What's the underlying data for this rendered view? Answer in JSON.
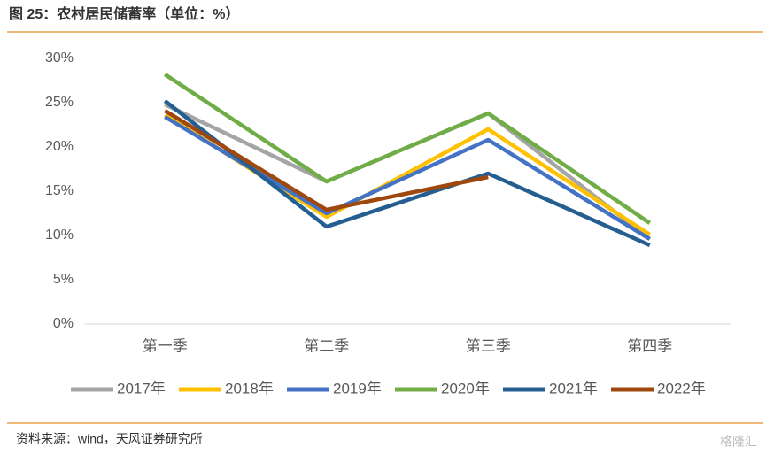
{
  "chart_data": {
    "type": "line",
    "title": "图 25：农村居民储蓄率（单位：%）",
    "source": "资料来源：wind，天风证券研究所",
    "watermark": "格隆汇",
    "categories": [
      "第一季",
      "第二季",
      "第三季",
      "第四季"
    ],
    "ylim": [
      0,
      30
    ],
    "yticks": [
      {
        "value": 0,
        "label": "0%"
      },
      {
        "value": 5,
        "label": "5%"
      },
      {
        "value": 10,
        "label": "10%"
      },
      {
        "value": 15,
        "label": "15%"
      },
      {
        "value": 20,
        "label": "20%"
      },
      {
        "value": 25,
        "label": "25%"
      },
      {
        "value": 30,
        "label": "30%"
      }
    ],
    "legend": "bottom",
    "series": [
      {
        "name": "2017年",
        "color": "#a5a5a5",
        "values": [
          24.8,
          16.1,
          23.8,
          9.6
        ]
      },
      {
        "name": "2018年",
        "color": "#ffc000",
        "values": [
          23.6,
          12.1,
          22.0,
          10.1
        ]
      },
      {
        "name": "2019年",
        "color": "#4472c4",
        "values": [
          23.4,
          12.5,
          20.8,
          9.6
        ]
      },
      {
        "name": "2020年",
        "color": "#70ad47",
        "values": [
          28.2,
          16.1,
          23.8,
          11.4
        ]
      },
      {
        "name": "2021年",
        "color": "#255e91",
        "values": [
          25.2,
          11.0,
          17.0,
          8.9
        ]
      },
      {
        "name": "2022年",
        "color": "#9e480e",
        "values": [
          24.1,
          12.9,
          16.6,
          null
        ]
      }
    ]
  }
}
